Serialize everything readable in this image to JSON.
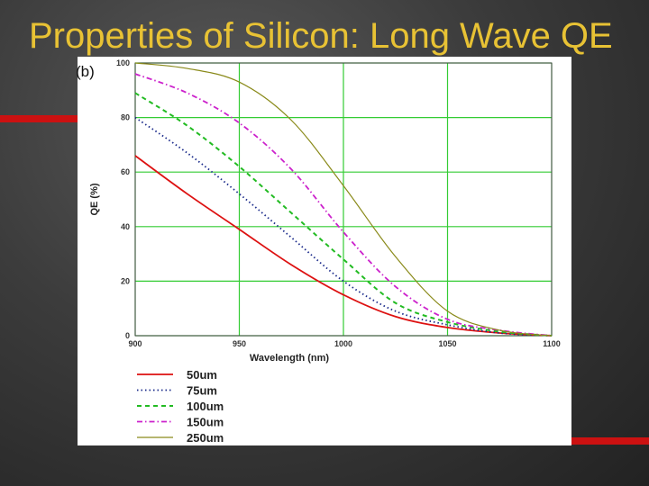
{
  "slide": {
    "title": "Properties of Silicon: Long Wave QE",
    "panel_label": "(b)"
  },
  "colors": {
    "title": "#e8c234",
    "accent": "#cc1111",
    "grid": "#33cc33"
  },
  "chart_data": {
    "type": "line",
    "title": "",
    "xlabel": "Wavelength (nm)",
    "ylabel": "QE (%)",
    "xlim": [
      900,
      1100
    ],
    "ylim": [
      0,
      100
    ],
    "xticks": [
      900,
      950,
      1000,
      1050,
      1100
    ],
    "yticks": [
      0,
      20,
      40,
      60,
      80,
      100
    ],
    "grid": true,
    "legend": "below",
    "series": [
      {
        "name": "50um",
        "color": "#dd1111",
        "dash": "",
        "width": 1.8,
        "x": [
          900,
          925,
          950,
          975,
          1000,
          1025,
          1050,
          1075,
          1100
        ],
        "y": [
          66,
          52,
          39,
          26,
          15,
          7,
          3,
          1,
          0
        ]
      },
      {
        "name": "75um",
        "color": "#1a2a8a",
        "dash": "1.5,3",
        "width": 1.8,
        "x": [
          900,
          925,
          950,
          975,
          1000,
          1025,
          1050,
          1075,
          1100
        ],
        "y": [
          80,
          67,
          52,
          36,
          20,
          9,
          4,
          1,
          0
        ]
      },
      {
        "name": "100um",
        "color": "#22bb22",
        "dash": "5,4",
        "width": 2,
        "x": [
          900,
          925,
          950,
          975,
          1000,
          1025,
          1050,
          1075,
          1100
        ],
        "y": [
          89,
          77,
          62,
          45,
          28,
          12,
          5,
          1.5,
          0
        ]
      },
      {
        "name": "150um",
        "color": "#cc22cc",
        "dash": "6,3,1.5,3",
        "width": 1.8,
        "x": [
          900,
          925,
          950,
          975,
          1000,
          1025,
          1050,
          1075,
          1100
        ],
        "y": [
          96,
          89,
          78,
          61,
          38,
          18,
          6,
          2,
          0
        ]
      },
      {
        "name": "250um",
        "color": "#8a8a1a",
        "dash": "",
        "width": 1.2,
        "x": [
          900,
          925,
          950,
          975,
          1000,
          1025,
          1050,
          1075,
          1100
        ],
        "y": [
          100,
          98,
          93,
          79,
          55,
          29,
          9,
          2,
          0
        ]
      }
    ]
  }
}
